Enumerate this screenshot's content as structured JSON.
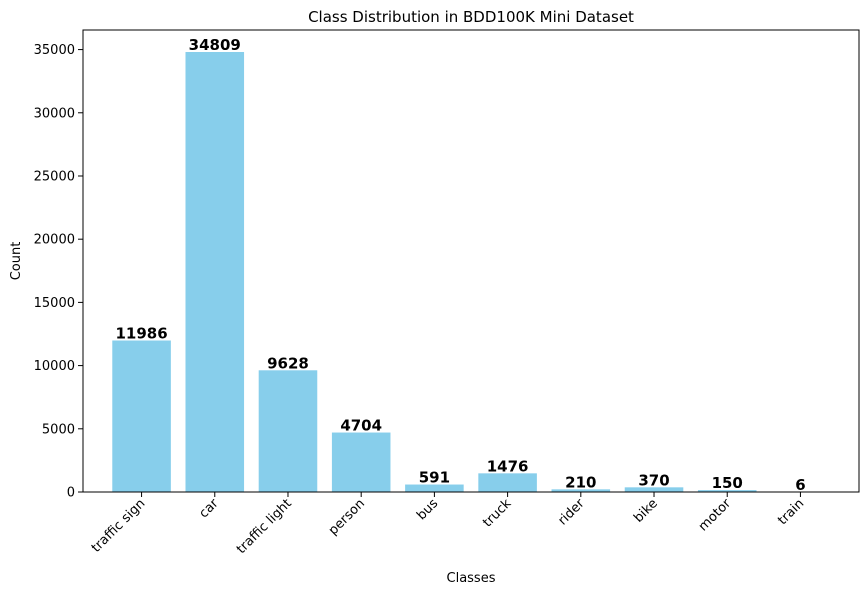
{
  "chart_data": {
    "type": "bar",
    "title": "Class Distribution in BDD100K Mini Dataset",
    "xlabel": "Classes",
    "ylabel": "Count",
    "categories": [
      "traffic sign",
      "car",
      "traffic light",
      "person",
      "bus",
      "truck",
      "rider",
      "bike",
      "motor",
      "train"
    ],
    "values": [
      11986,
      34809,
      9628,
      4704,
      591,
      1476,
      210,
      370,
      150,
      6
    ],
    "value_labels": [
      "11986",
      "34809",
      "9628",
      "4704",
      "591",
      "1476",
      "210",
      "370",
      "150",
      "6"
    ],
    "yticks": [
      0,
      5000,
      10000,
      15000,
      20000,
      25000,
      30000,
      35000
    ],
    "ytick_labels": [
      "0",
      "5000",
      "10000",
      "15000",
      "20000",
      "25000",
      "30000",
      "35000"
    ],
    "ylim": [
      0,
      36549
    ],
    "bar_color": "#87ceeb",
    "grid": false,
    "legend": "none"
  }
}
